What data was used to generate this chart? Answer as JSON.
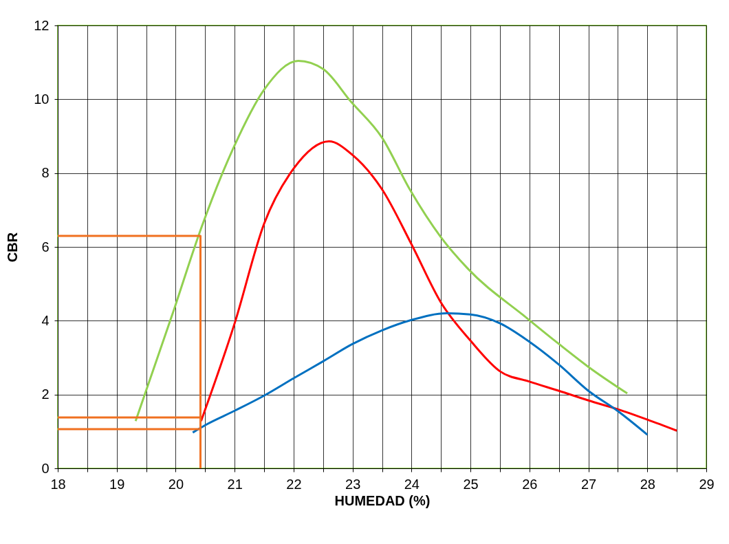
{
  "chart_data": {
    "type": "line",
    "xlabel": "HUMEDAD (%)",
    "ylabel": "CBR",
    "xlim": [
      18,
      29
    ],
    "ylim": [
      0,
      12
    ],
    "xticks": [
      18,
      {
        "value": 18.5,
        "label": null
      },
      19,
      {
        "value": 19.5,
        "label": null
      },
      20,
      {
        "value": 20.5,
        "label": null
      },
      21,
      {
        "value": 21.5,
        "label": null
      },
      22,
      {
        "value": 22.5,
        "label": null
      },
      23,
      {
        "value": 23.5,
        "label": null
      },
      24,
      {
        "value": 24.5,
        "label": null
      },
      25,
      {
        "value": 25.5,
        "label": null
      },
      26,
      {
        "value": 26.5,
        "label": null
      },
      27,
      {
        "value": 27.5,
        "label": null
      },
      28,
      {
        "value": 28.5,
        "label": null
      },
      29
    ],
    "yticks": [
      0,
      2,
      4,
      6,
      8,
      10,
      12
    ],
    "grid": true,
    "marker": "none",
    "line_style": "solid",
    "series": [
      {
        "color": "#92d050",
        "x": [
          19.32,
          19.95,
          20.44,
          20.99,
          21.5,
          22.08,
          22.5,
          22.97,
          23.5,
          23.97,
          24.5,
          24.95,
          25.95,
          26.5,
          27.0,
          27.66
        ],
        "values": [
          1.28,
          4.2,
          6.54,
          8.72,
          10.26,
          11.04,
          10.82,
          9.94,
          8.96,
          7.56,
          6.26,
          5.42,
          4.08,
          3.37,
          2.75,
          2.03
        ]
      },
      {
        "color": "#ff0000",
        "x": [
          20.43,
          21.0,
          21.5,
          22.0,
          22.6,
          23.0,
          23.5,
          24.0,
          24.5,
          25.0,
          25.5,
          26.0,
          26.5,
          27.0,
          27.5,
          28.0,
          28.5
        ],
        "values": [
          1.28,
          3.93,
          6.63,
          8.12,
          8.86,
          8.49,
          7.56,
          6.07,
          4.49,
          3.46,
          2.63,
          2.35,
          2.1,
          1.84,
          1.6,
          1.32,
          1.02
        ]
      },
      {
        "color": "#0070c0",
        "x": [
          20.29,
          20.5,
          21.0,
          21.5,
          22.0,
          22.5,
          23.0,
          23.5,
          24.0,
          24.6,
          25.0,
          25.5,
          26.0,
          26.5,
          27.0,
          27.5,
          28.0
        ],
        "values": [
          0.97,
          1.17,
          1.56,
          1.97,
          2.44,
          2.9,
          3.37,
          3.74,
          4.02,
          4.2,
          4.17,
          3.93,
          3.43,
          2.81,
          2.1,
          1.55,
          0.91
        ]
      },
      {
        "color": "#f07020",
        "x": [
          18,
          20.42,
          20.42
        ],
        "values": [
          6.3,
          6.3,
          0
        ]
      },
      {
        "color": "#f07020",
        "x": [
          18,
          20.42
        ],
        "values": [
          1.38,
          1.38
        ]
      },
      {
        "color": "#f07020",
        "x": [
          18,
          20.42
        ],
        "values": [
          1.06,
          1.06
        ]
      }
    ]
  }
}
